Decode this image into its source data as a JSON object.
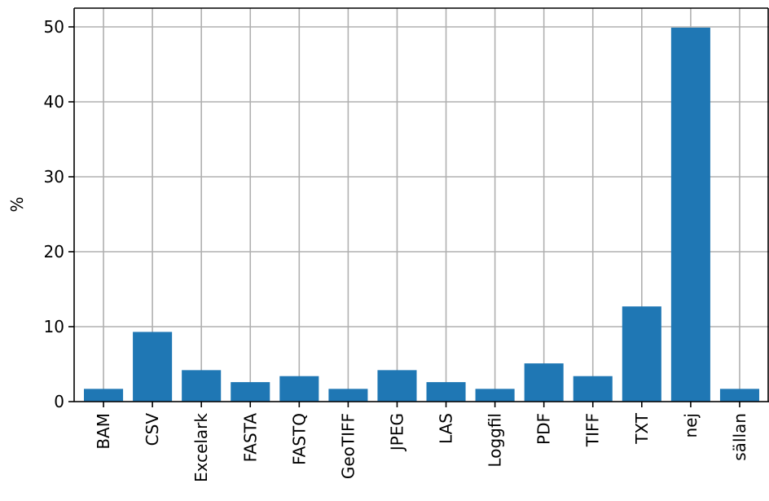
{
  "chart_data": {
    "type": "bar",
    "categories": [
      "BAM",
      "CSV",
      "Excelark",
      "FASTA",
      "FASTQ",
      "GeoTIFF",
      "JPEG",
      "LAS",
      "Loggfil",
      "PDF",
      "TIFF",
      "TXT",
      "nej",
      "sällan"
    ],
    "values": [
      1.7,
      9.3,
      4.2,
      2.6,
      3.4,
      1.7,
      4.2,
      2.6,
      1.7,
      5.1,
      3.4,
      12.7,
      49.9,
      1.7
    ],
    "title": "",
    "xlabel": "",
    "ylabel": "%",
    "ylim": [
      0,
      52.5
    ],
    "yticks": [
      0,
      10,
      20,
      30,
      40,
      50
    ],
    "grid": true,
    "bar_color": "#1f77b4"
  }
}
